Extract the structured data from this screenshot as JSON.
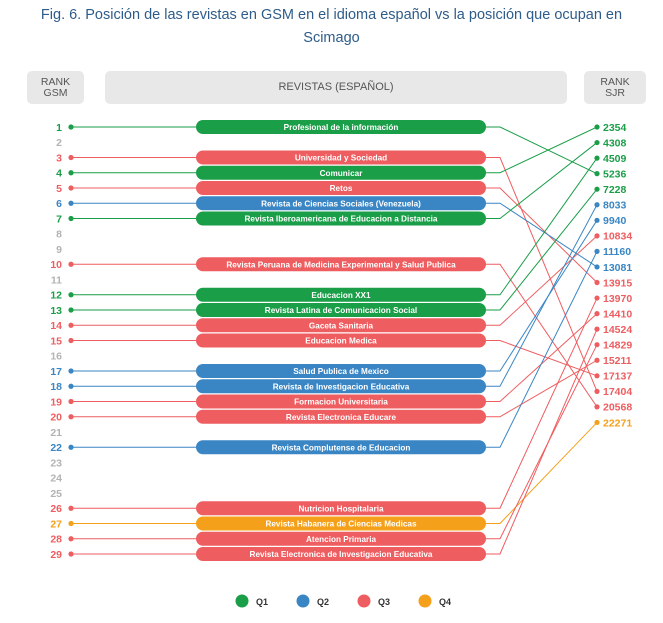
{
  "caption": {
    "line1": "Fig.  6. Posición de las revistas en GSM en el idioma español vs la posición que ocupan en",
    "line2": "Scimago"
  },
  "headers": {
    "rank_gsm_1": "RANK",
    "rank_gsm_2": "GSM",
    "journals": "REVISTAS (ESPAÑOL)",
    "rank_sjr_1": "RANK",
    "rank_sjr_2": "SJR"
  },
  "colors": {
    "Q1": "#1a9e47",
    "Q2": "#3a86c4",
    "Q3": "#ee5d60",
    "Q4": "#f5a01a",
    "empty": "#b3b3b3"
  },
  "chart_data": {
    "type": "diagram",
    "gsm_ranks": [
      1,
      2,
      3,
      4,
      5,
      6,
      7,
      8,
      9,
      10,
      11,
      12,
      13,
      14,
      15,
      16,
      17,
      18,
      19,
      20,
      21,
      22,
      23,
      24,
      25,
      26,
      27,
      28,
      29
    ],
    "sjr_ranks": [
      {
        "value": "2354",
        "quartile": "Q1"
      },
      {
        "value": "4308",
        "quartile": "Q1"
      },
      {
        "value": "4509",
        "quartile": "Q1"
      },
      {
        "value": "5236",
        "quartile": "Q1"
      },
      {
        "value": "7228",
        "quartile": "Q1"
      },
      {
        "value": "8033",
        "quartile": "Q2"
      },
      {
        "value": "9940",
        "quartile": "Q2"
      },
      {
        "value": "10834",
        "quartile": "Q3"
      },
      {
        "value": "11160",
        "quartile": "Q2"
      },
      {
        "value": "13081",
        "quartile": "Q2"
      },
      {
        "value": "13915",
        "quartile": "Q3"
      },
      {
        "value": "13970",
        "quartile": "Q3"
      },
      {
        "value": "14410",
        "quartile": "Q3"
      },
      {
        "value": "14524",
        "quartile": "Q3"
      },
      {
        "value": "14829",
        "quartile": "Q3"
      },
      {
        "value": "15211",
        "quartile": "Q3"
      },
      {
        "value": "17137",
        "quartile": "Q3"
      },
      {
        "value": "17404",
        "quartile": "Q3"
      },
      {
        "value": "20568",
        "quartile": "Q3"
      },
      {
        "value": "22271",
        "quartile": "Q4"
      }
    ],
    "journals": [
      {
        "gsm": 1,
        "name": "Profesional de la información",
        "quartile": "Q1",
        "sjr": "5236"
      },
      {
        "gsm": 3,
        "name": "Universidad y Sociedad",
        "quartile": "Q3",
        "sjr": "17404"
      },
      {
        "gsm": 4,
        "name": "Comunicar",
        "quartile": "Q1",
        "sjr": "2354"
      },
      {
        "gsm": 5,
        "name": "Retos",
        "quartile": "Q3",
        "sjr": "13915"
      },
      {
        "gsm": 6,
        "name": "Revista de Ciencias Sociales (Venezuela)",
        "quartile": "Q2",
        "sjr": "13081"
      },
      {
        "gsm": 7,
        "name": "Revista Iberoamericana de Educacion a Distancia",
        "quartile": "Q1",
        "sjr": "4308"
      },
      {
        "gsm": 10,
        "name": "Revista Peruana de Medicina Experimental y Salud Publica",
        "quartile": "Q3",
        "sjr": "20568"
      },
      {
        "gsm": 12,
        "name": "Educacion XX1",
        "quartile": "Q1",
        "sjr": "4509"
      },
      {
        "gsm": 13,
        "name": "Revista Latina de Comunicacion Social",
        "quartile": "Q1",
        "sjr": "7228"
      },
      {
        "gsm": 14,
        "name": "Gaceta Sanitaria",
        "quartile": "Q3",
        "sjr": "10834"
      },
      {
        "gsm": 15,
        "name": "Educacion Medica",
        "quartile": "Q3",
        "sjr": "17137"
      },
      {
        "gsm": 17,
        "name": "Salud Publica de Mexico",
        "quartile": "Q2",
        "sjr": "9940"
      },
      {
        "gsm": 18,
        "name": "Revista de Investigacion Educativa",
        "quartile": "Q2",
        "sjr": "8033"
      },
      {
        "gsm": 19,
        "name": "Formacion Universitaria",
        "quartile": "Q3",
        "sjr": "14410"
      },
      {
        "gsm": 20,
        "name": "Revista Electronica Educare",
        "quartile": "Q3",
        "sjr": "15211"
      },
      {
        "gsm": 22,
        "name": "Revista Complutense de Educacion",
        "quartile": "Q2",
        "sjr": "11160"
      },
      {
        "gsm": 26,
        "name": "Nutricion Hospitalaria",
        "quartile": "Q3",
        "sjr": "13970"
      },
      {
        "gsm": 27,
        "name": "Revista Habanera de Ciencias Medicas",
        "quartile": "Q4",
        "sjr": "22271"
      },
      {
        "gsm": 28,
        "name": "Atencion Primaria",
        "quartile": "Q3",
        "sjr": "14829"
      },
      {
        "gsm": 29,
        "name": "Revista Electronica de Investigacion Educativa",
        "quartile": "Q3",
        "sjr": "14524"
      }
    ],
    "legend": [
      {
        "label": "Q1",
        "quartile": "Q1"
      },
      {
        "label": "Q2",
        "quartile": "Q2"
      },
      {
        "label": "Q3",
        "quartile": "Q3"
      },
      {
        "label": "Q4",
        "quartile": "Q4"
      }
    ]
  }
}
